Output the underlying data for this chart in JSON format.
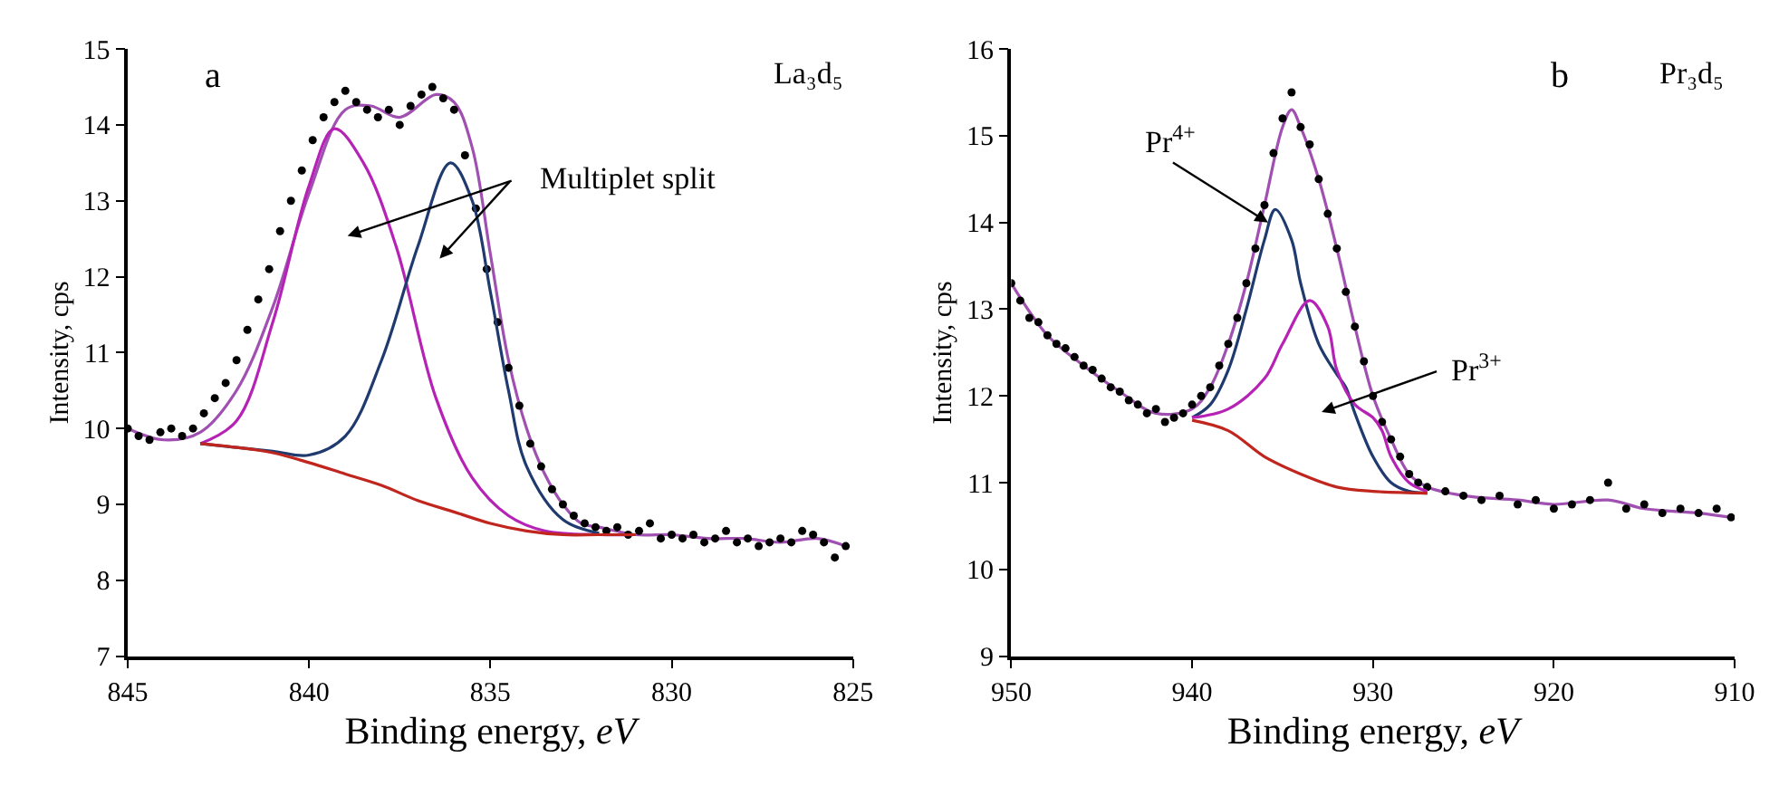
{
  "chart_data": [
    {
      "type": "line",
      "xlabel": "Binding energy, eV",
      "ylabel": "Intensity, cps",
      "xlim": [
        845,
        825
      ],
      "xticks": [
        845,
        840,
        835,
        830,
        825
      ],
      "ylim": [
        7,
        15
      ],
      "yticks": [
        7,
        8,
        9,
        10,
        11,
        12,
        13,
        14,
        15
      ],
      "annotations": [
        "a",
        "La₃d₅",
        "Multiplet split"
      ],
      "series": [
        {
          "color": "#a050b0",
          "x": [
            845,
            844,
            843,
            842,
            841,
            840,
            839,
            838.3,
            837.5,
            836.5,
            836,
            835.5,
            835,
            834.5,
            834,
            833.5,
            833,
            832.5,
            832,
            831,
            830,
            829,
            828,
            827,
            826,
            825.2
          ],
          "values": [
            10.0,
            9.85,
            9.95,
            10.5,
            11.6,
            13.1,
            14.2,
            14.25,
            14.1,
            14.4,
            14.3,
            13.7,
            12.3,
            10.9,
            10.0,
            9.4,
            9.0,
            8.75,
            8.7,
            8.6,
            8.6,
            8.55,
            8.55,
            8.5,
            8.55,
            8.45
          ]
        },
        {
          "type": "scatter",
          "color": "#000000",
          "marker": "circle",
          "x": [
            845,
            844.7,
            844.4,
            844.1,
            843.8,
            843.5,
            843.2,
            842.9,
            842.6,
            842.3,
            842,
            841.7,
            841.4,
            841.1,
            840.8,
            840.5,
            840.2,
            839.9,
            839.6,
            839.3,
            839,
            838.7,
            838.4,
            838.1,
            837.8,
            837.5,
            837.2,
            836.9,
            836.6,
            836.3,
            836,
            835.7,
            835.4,
            835.1,
            834.8,
            834.5,
            834.2,
            833.9,
            833.6,
            833.3,
            833,
            832.7,
            832.4,
            832.1,
            831.8,
            831.5,
            831.2,
            830.9,
            830.6,
            830.3,
            830,
            829.7,
            829.4,
            829.1,
            828.8,
            828.5,
            828.2,
            827.9,
            827.6,
            827.3,
            827,
            826.7,
            826.4,
            826.1,
            825.8,
            825.5,
            825.2
          ],
          "values": [
            10.0,
            9.9,
            9.85,
            9.95,
            10.0,
            9.9,
            10.0,
            10.2,
            10.4,
            10.6,
            10.9,
            11.3,
            11.7,
            12.1,
            12.6,
            13.0,
            13.4,
            13.8,
            14.1,
            14.3,
            14.45,
            14.3,
            14.2,
            14.1,
            14.2,
            14.0,
            14.25,
            14.4,
            14.5,
            14.35,
            14.2,
            13.6,
            12.9,
            12.1,
            11.4,
            10.8,
            10.3,
            9.8,
            9.5,
            9.2,
            9.0,
            8.85,
            8.75,
            8.7,
            8.65,
            8.7,
            8.6,
            8.65,
            8.75,
            8.55,
            8.6,
            8.55,
            8.6,
            8.5,
            8.55,
            8.65,
            8.5,
            8.55,
            8.45,
            8.5,
            8.55,
            8.5,
            8.65,
            8.6,
            8.5,
            8.3,
            8.45
          ]
        },
        {
          "color": "#b522b5",
          "x": [
            843,
            842,
            841,
            840,
            839.3,
            838.5,
            837.6,
            836.5,
            835.5,
            834.5,
            833.5,
            832,
            831
          ],
          "values": [
            9.8,
            10.1,
            11.4,
            13.2,
            13.95,
            13.5,
            12.4,
            10.4,
            9.35,
            8.85,
            8.65,
            8.6,
            8.6
          ]
        },
        {
          "color": "#1f3a6e",
          "x": [
            843,
            841,
            840,
            839,
            838,
            837,
            836.1,
            835.5,
            835,
            834.5,
            834,
            833,
            832
          ],
          "values": [
            9.8,
            9.7,
            9.65,
            9.9,
            10.9,
            12.4,
            13.5,
            13.0,
            11.8,
            10.5,
            9.5,
            8.8,
            8.62
          ]
        },
        {
          "color": "#c0261e",
          "x": [
            843,
            842,
            841,
            840,
            839,
            838,
            837,
            836,
            835,
            834,
            833,
            832,
            831
          ],
          "values": [
            9.8,
            9.75,
            9.68,
            9.55,
            9.4,
            9.25,
            9.05,
            8.9,
            8.75,
            8.65,
            8.6,
            8.6,
            8.6
          ]
        }
      ]
    },
    {
      "type": "line",
      "xlabel": "Binding energy, eV",
      "ylabel": "Intensity, cps",
      "xlim": [
        950,
        910
      ],
      "xticks": [
        950,
        940,
        930,
        920,
        910
      ],
      "ylim": [
        9,
        16
      ],
      "yticks": [
        9,
        10,
        11,
        12,
        13,
        14,
        15,
        16
      ],
      "annotations": [
        "b",
        "Pr₃d₅",
        {
          "text": "Pr$^{4+}$",
          "x": 935.8,
          "y": 14.0
        },
        "Pr$^{3+}$"
      ],
      "series": [
        {
          "color": "#a050b0",
          "x": [
            950,
            948,
            946,
            944,
            942,
            940,
            939,
            938,
            937,
            936,
            935,
            934.5,
            934,
            933,
            932,
            931,
            930,
            929,
            928,
            927,
            925,
            922,
            920,
            917,
            915,
            912,
            910.2
          ],
          "values": [
            13.3,
            12.7,
            12.35,
            12.05,
            11.8,
            11.85,
            12.1,
            12.6,
            13.3,
            14.2,
            15.1,
            15.3,
            15.1,
            14.5,
            13.7,
            12.8,
            12.0,
            11.5,
            11.1,
            10.95,
            10.85,
            10.8,
            10.75,
            10.8,
            10.7,
            10.65,
            10.6
          ]
        },
        {
          "type": "scatter",
          "color": "#000000",
          "marker": "circle",
          "x": [
            950,
            949.5,
            949,
            948.5,
            948,
            947.5,
            947,
            946.5,
            946,
            945.5,
            945,
            944.5,
            944,
            943.5,
            943,
            942.5,
            942,
            941.5,
            941,
            940.5,
            940,
            939.5,
            939,
            938.5,
            938,
            937.5,
            937,
            936.5,
            936,
            935.5,
            935,
            934.5,
            934,
            933.5,
            933,
            932.5,
            932,
            931.5,
            931,
            930.5,
            930,
            929.5,
            929,
            928.5,
            928,
            927.5,
            927,
            926,
            925,
            924,
            923,
            922,
            921,
            920,
            919,
            918,
            917,
            916,
            915,
            914,
            913,
            912,
            911,
            910.2
          ],
          "values": [
            13.3,
            13.1,
            12.9,
            12.85,
            12.7,
            12.6,
            12.55,
            12.45,
            12.35,
            12.3,
            12.2,
            12.1,
            12.05,
            11.95,
            11.9,
            11.8,
            11.85,
            11.7,
            11.75,
            11.8,
            11.9,
            12.0,
            12.1,
            12.35,
            12.6,
            12.9,
            13.3,
            13.7,
            14.2,
            14.8,
            15.2,
            15.5,
            15.1,
            14.9,
            14.5,
            14.1,
            13.7,
            13.2,
            12.8,
            12.4,
            12.0,
            11.7,
            11.5,
            11.3,
            11.1,
            11.0,
            10.95,
            10.9,
            10.85,
            10.8,
            10.85,
            10.75,
            10.8,
            10.7,
            10.75,
            10.8,
            11.0,
            10.7,
            10.75,
            10.65,
            10.7,
            10.65,
            10.7,
            10.6
          ]
        },
        {
          "color": "#1f3a6e",
          "x": [
            940,
            939,
            938,
            937,
            936,
            935.4,
            934.5,
            934,
            933,
            932,
            931.5,
            931,
            930,
            929,
            928,
            927
          ],
          "values": [
            11.75,
            11.9,
            12.3,
            13.0,
            13.8,
            14.15,
            13.8,
            13.3,
            12.6,
            12.25,
            12.1,
            11.8,
            11.3,
            11.0,
            10.9,
            10.88
          ]
        },
        {
          "color": "#b522b5",
          "x": [
            940,
            938,
            936,
            935,
            933.5,
            932.5,
            932,
            931,
            930,
            929.5,
            929,
            928,
            927
          ],
          "values": [
            11.75,
            11.85,
            12.2,
            12.6,
            13.1,
            12.8,
            12.3,
            11.9,
            11.75,
            11.6,
            11.3,
            11.0,
            10.9
          ]
        },
        {
          "color": "#c0261e",
          "x": [
            940,
            938,
            936,
            934,
            932,
            930,
            927
          ],
          "values": [
            11.72,
            11.6,
            11.3,
            11.1,
            10.95,
            10.9,
            10.88
          ]
        }
      ]
    }
  ]
}
